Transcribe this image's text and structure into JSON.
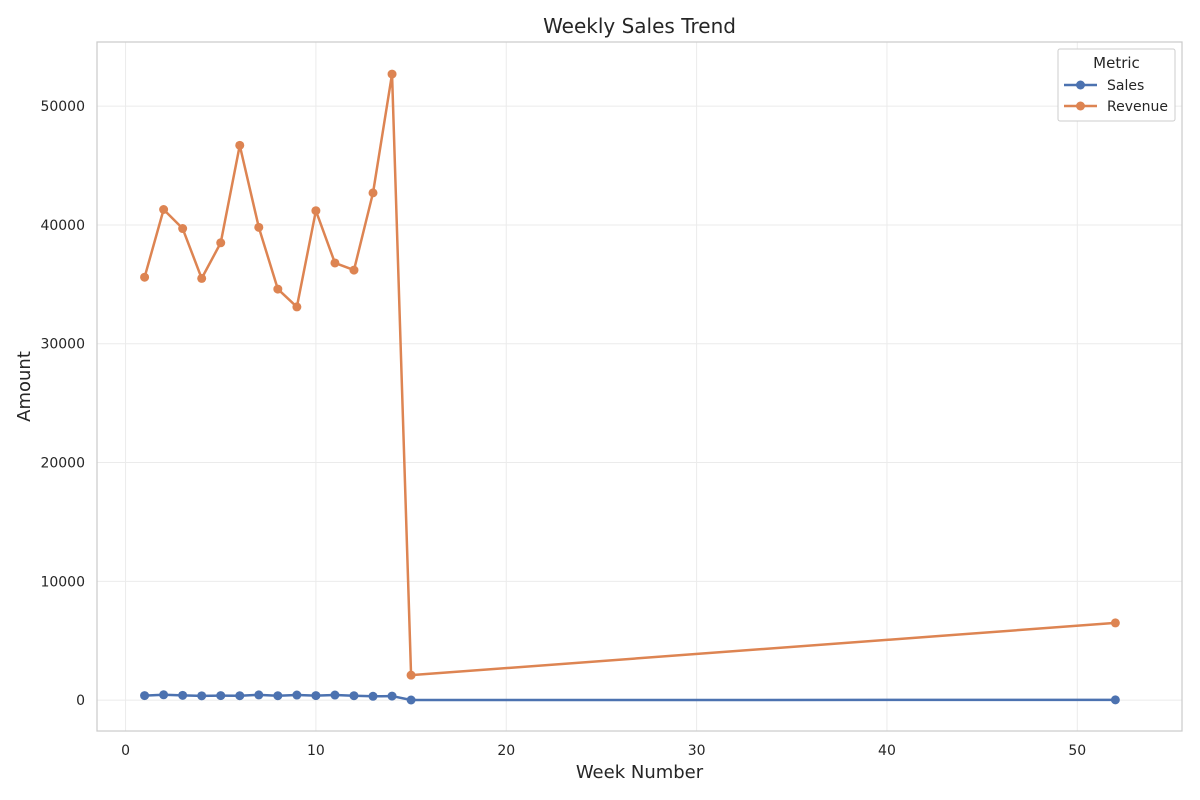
{
  "chart_data": {
    "type": "line",
    "title": "Weekly Sales Trend",
    "xlabel": "Week Number",
    "ylabel": "Amount",
    "xlim": [
      -1.5,
      55.5
    ],
    "ylim": [
      -2600,
      55400
    ],
    "x_ticks": [
      0,
      10,
      20,
      30,
      40,
      50
    ],
    "y_ticks": [
      0,
      10000,
      20000,
      30000,
      40000,
      50000
    ],
    "grid": true,
    "legend": {
      "title": "Metric",
      "placement": "top-right"
    },
    "series": [
      {
        "name": "Sales",
        "color": "#4c72b0",
        "x": [
          1,
          2,
          3,
          4,
          5,
          6,
          7,
          8,
          9,
          10,
          11,
          12,
          13,
          14,
          15,
          52
        ],
        "values": [
          380,
          450,
          400,
          360,
          380,
          370,
          440,
          370,
          430,
          380,
          430,
          370,
          320,
          340,
          10,
          20
        ]
      },
      {
        "name": "Revenue",
        "color": "#dd8452",
        "x": [
          1,
          2,
          3,
          4,
          5,
          6,
          7,
          8,
          9,
          10,
          11,
          12,
          13,
          14,
          15,
          52
        ],
        "values": [
          35600,
          41300,
          39700,
          35500,
          38500,
          46700,
          39800,
          34600,
          33100,
          41200,
          36800,
          36200,
          42700,
          52700,
          2100,
          6500
        ]
      }
    ]
  }
}
